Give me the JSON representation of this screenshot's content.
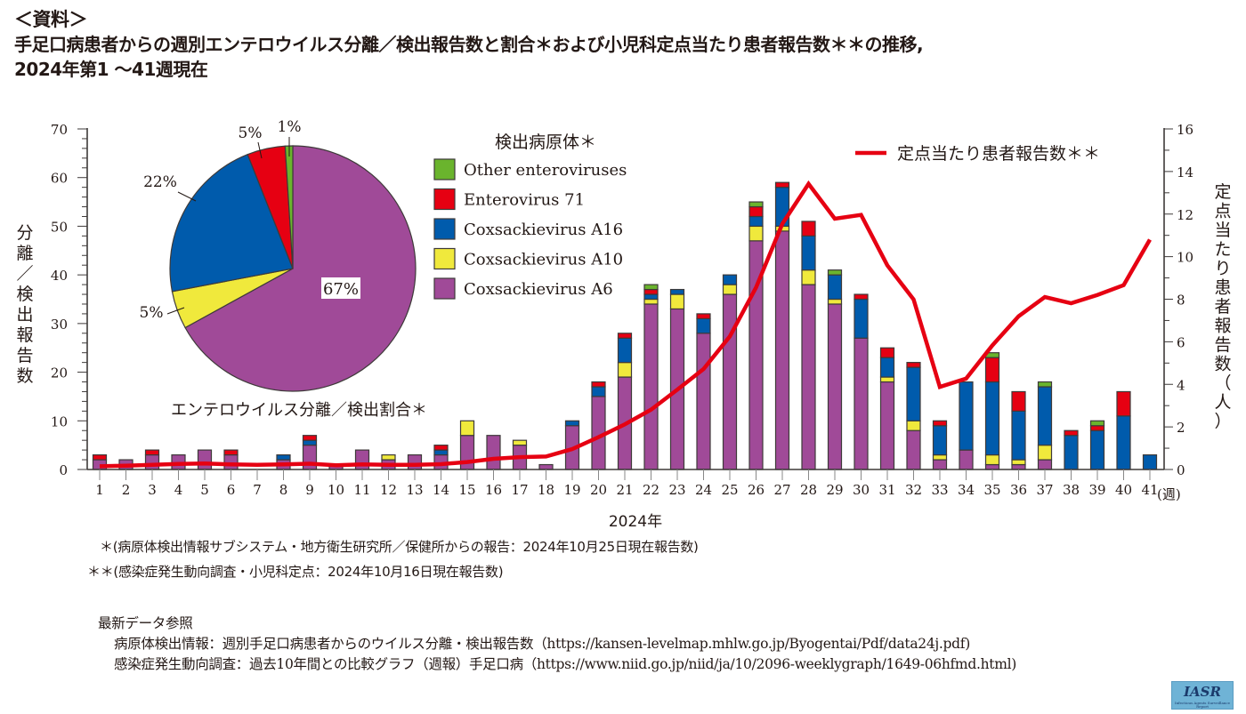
{
  "header": {
    "label": "＜資料＞",
    "title_line1": "手足口病患者からの週別エンテロウイルス分離／検出報告数と割合＊および小児科定点当たり患者報告数＊＊の推移,",
    "title_line2": "2024年第1 〜41週現在"
  },
  "chart_data": {
    "type": "bar",
    "stacked": true,
    "title": "手足口病患者からの週別エンテロウイルス分離／検出報告数と割合＊および小児科定点当たり患者報告数＊＊の推移, 2024年第1 〜41週現在",
    "xlabel": "2024年",
    "x_unit": "(週)",
    "ylabel": "分離／検出報告数",
    "y2label": "定点当たり患者報告数（人）",
    "ylim": [
      0,
      70
    ],
    "y_ticks": [
      0,
      10,
      20,
      30,
      40,
      50,
      60,
      70
    ],
    "y2lim": [
      0,
      16
    ],
    "y2_ticks": [
      0,
      2,
      4,
      6,
      8,
      10,
      12,
      14,
      16
    ],
    "grid": false,
    "categories": [
      "1",
      "2",
      "3",
      "4",
      "5",
      "6",
      "7",
      "8",
      "9",
      "10",
      "11",
      "12",
      "13",
      "14",
      "15",
      "16",
      "17",
      "18",
      "19",
      "20",
      "21",
      "22",
      "23",
      "24",
      "25",
      "26",
      "27",
      "28",
      "29",
      "30",
      "31",
      "32",
      "33",
      "34",
      "35",
      "36",
      "37",
      "38",
      "39",
      "40",
      "41"
    ],
    "legend_title": "検出病原体＊",
    "legend_position": "top-center",
    "series": [
      {
        "name": "Coxsackievirus A6",
        "color": "#a04a98",
        "values": [
          2,
          2,
          3,
          3,
          4,
          3,
          0,
          2,
          5,
          1,
          4,
          2,
          3,
          3,
          7,
          7,
          5,
          1,
          9,
          15,
          19,
          34,
          33,
          28,
          36,
          47,
          49,
          38,
          34,
          27,
          18,
          8,
          2,
          4,
          1,
          1,
          2,
          0,
          0,
          0,
          0
        ]
      },
      {
        "name": "Coxsackievirus A10",
        "color": "#f0e93c",
        "values": [
          0,
          0,
          0,
          0,
          0,
          0,
          0,
          0,
          0,
          0,
          0,
          1,
          0,
          0,
          3,
          0,
          1,
          0,
          0,
          0,
          3,
          1,
          3,
          0,
          2,
          3,
          1,
          3,
          1,
          0,
          1,
          2,
          1,
          0,
          2,
          1,
          3,
          0,
          0,
          0,
          0
        ]
      },
      {
        "name": "Coxsackievirus A16",
        "color": "#005bac",
        "values": [
          0,
          0,
          0,
          0,
          0,
          0,
          0,
          1,
          1,
          0,
          0,
          0,
          0,
          1,
          0,
          0,
          0,
          0,
          1,
          2,
          5,
          1,
          1,
          3,
          2,
          2,
          8,
          7,
          5,
          8,
          4,
          11,
          6,
          14,
          15,
          10,
          12,
          7,
          8,
          11,
          3
        ]
      },
      {
        "name": "Enterovirus 71",
        "color": "#e60012",
        "values": [
          1,
          0,
          1,
          0,
          0,
          1,
          0,
          0,
          1,
          0,
          0,
          0,
          0,
          1,
          0,
          0,
          0,
          0,
          0,
          1,
          1,
          1,
          0,
          1,
          0,
          2,
          1,
          3,
          0,
          1,
          2,
          1,
          1,
          0,
          5,
          4,
          0,
          1,
          1,
          5,
          0
        ]
      },
      {
        "name": "Other enteroviruses",
        "color": "#6ab42d",
        "values": [
          0,
          0,
          0,
          0,
          0,
          0,
          0,
          0,
          0,
          0,
          0,
          0,
          0,
          0,
          0,
          0,
          0,
          0,
          0,
          0,
          0,
          1,
          0,
          0,
          0,
          1,
          0,
          0,
          1,
          0,
          0,
          0,
          0,
          0,
          1,
          0,
          1,
          0,
          1,
          0,
          0
        ]
      }
    ],
    "line": {
      "name": "定点当たり患者報告数＊＊",
      "color": "#e60012",
      "axis": "right",
      "values": [
        0.15,
        0.18,
        0.22,
        0.26,
        0.28,
        0.24,
        0.22,
        0.24,
        0.27,
        0.2,
        0.24,
        0.22,
        0.22,
        0.25,
        0.35,
        0.5,
        0.58,
        0.61,
        0.96,
        1.52,
        2.12,
        2.81,
        3.75,
        4.72,
        6.25,
        8.55,
        11.54,
        13.42,
        11.78,
        11.96,
        9.59,
        7.99,
        3.88,
        4.27,
        5.83,
        7.2,
        8.1,
        7.81,
        8.2,
        8.66,
        10.8
      ]
    },
    "pie": {
      "title": "エンテロウイルス分離／検出割合＊",
      "slices": [
        {
          "name": "Coxsackievirus A6",
          "percent": 67,
          "label": "67%",
          "color": "#a04a98"
        },
        {
          "name": "Coxsackievirus A10",
          "percent": 5,
          "label": "5%",
          "color": "#f0e93c"
        },
        {
          "name": "Coxsackievirus A16",
          "percent": 22,
          "label": "22%",
          "color": "#005bac"
        },
        {
          "name": "Enterovirus 71",
          "percent": 5,
          "label": "5%",
          "color": "#e60012"
        },
        {
          "name": "Other enteroviruses",
          "percent": 1,
          "label": "1%",
          "color": "#6ab42d"
        }
      ]
    }
  },
  "legend": {
    "title": "検出病原体＊",
    "items": [
      {
        "label": "Other enteroviruses",
        "color": "#6ab42d"
      },
      {
        "label": "Enterovirus 71",
        "color": "#e60012"
      },
      {
        "label": "Coxsackievirus A16",
        "color": "#005bac"
      },
      {
        "label": "Coxsackievirus A10",
        "color": "#f0e93c"
      },
      {
        "label": "Coxsackievirus A6",
        "color": "#a04a98"
      }
    ],
    "line_label": "定点当たり患者報告数＊＊"
  },
  "notes": {
    "note1": "＊(病原体検出情報サブシステム・地方衛生研究所／保健所からの報告：2024年10月25日現在報告数)",
    "note2": "＊＊(感染症発生動向調査・小児科定点：2024年10月16日現在報告数)"
  },
  "references": {
    "heading": "最新データ参照",
    "line1": "病原体検出情報：週別手足口病患者からのウイルス分離・検出報告数（https://kansen-levelmap.mhlw.go.jp/Byogentai/Pdf/data24j.pdf)",
    "line2": "感染症発生動向調査：過去10年間との比較グラフ（週報）手足口病（https://www.niid.go.jp/niid/ja/10/2096-weeklygraph/1649-06hfmd.html)"
  },
  "logo": {
    "text": "IASR",
    "subtext": "Infectious Agents Surveillance Report"
  }
}
